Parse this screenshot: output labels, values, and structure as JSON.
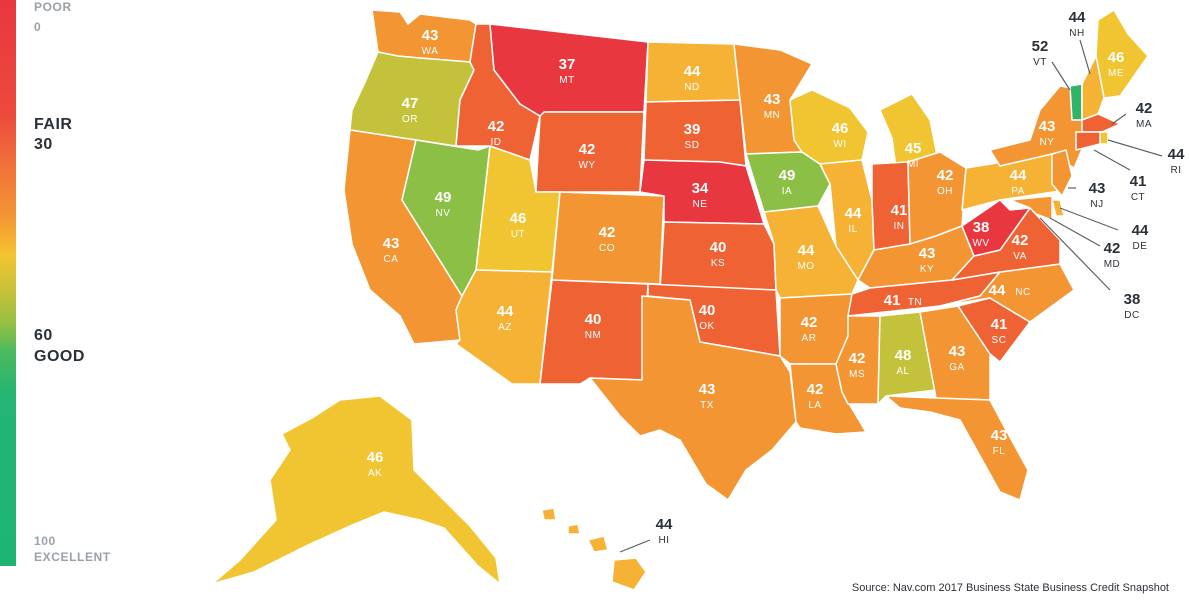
{
  "legend": {
    "poor_label": "POOR",
    "poor_value": "0",
    "fair_label": "FAIR",
    "fair_value": "30",
    "good_value": "60",
    "good_label": "GOOD",
    "excellent_value": "100",
    "excellent_label": "EXCELLENT"
  },
  "colors": {
    "red": "#e8373f",
    "orange_red": "#ef6234",
    "orange": "#f39533",
    "yellow_orange": "#f6b235",
    "yellow": "#f1c432",
    "olive": "#c3c23a",
    "light_green": "#8bbf45",
    "green": "#30b46c"
  },
  "states": {
    "WA": {
      "abbr": "WA",
      "score": "43"
    },
    "OR": {
      "abbr": "OR",
      "score": "47"
    },
    "CA": {
      "abbr": "CA",
      "score": "43"
    },
    "NV": {
      "abbr": "NV",
      "score": "49"
    },
    "ID": {
      "abbr": "ID",
      "score": "42"
    },
    "MT": {
      "abbr": "MT",
      "score": "37"
    },
    "WY": {
      "abbr": "WY",
      "score": "42"
    },
    "UT": {
      "abbr": "UT",
      "score": "46"
    },
    "AZ": {
      "abbr": "AZ",
      "score": "44"
    },
    "CO": {
      "abbr": "CO",
      "score": "42"
    },
    "NM": {
      "abbr": "NM",
      "score": "40"
    },
    "ND": {
      "abbr": "ND",
      "score": "44"
    },
    "SD": {
      "abbr": "SD",
      "score": "39"
    },
    "NE": {
      "abbr": "NE",
      "score": "34"
    },
    "KS": {
      "abbr": "KS",
      "score": "40"
    },
    "OK": {
      "abbr": "OK",
      "score": "40"
    },
    "TX": {
      "abbr": "TX",
      "score": "43"
    },
    "MN": {
      "abbr": "MN",
      "score": "43"
    },
    "IA": {
      "abbr": "IA",
      "score": "49"
    },
    "MO": {
      "abbr": "MO",
      "score": "44"
    },
    "AR": {
      "abbr": "AR",
      "score": "42"
    },
    "LA": {
      "abbr": "LA",
      "score": "42"
    },
    "WI": {
      "abbr": "WI",
      "score": "46"
    },
    "IL": {
      "abbr": "IL",
      "score": "44"
    },
    "MI": {
      "abbr": "MI",
      "score": "45"
    },
    "IN": {
      "abbr": "IN",
      "score": "41"
    },
    "OH": {
      "abbr": "OH",
      "score": "42"
    },
    "KY": {
      "abbr": "KY",
      "score": "43"
    },
    "TN": {
      "abbr": "TN",
      "score": "41"
    },
    "MS": {
      "abbr": "MS",
      "score": "42"
    },
    "AL": {
      "abbr": "AL",
      "score": "48"
    },
    "GA": {
      "abbr": "GA",
      "score": "43"
    },
    "FL": {
      "abbr": "FL",
      "score": "43"
    },
    "SC": {
      "abbr": "SC",
      "score": "41"
    },
    "NC": {
      "abbr": "NC",
      "score": "44"
    },
    "VA": {
      "abbr": "VA",
      "score": "42"
    },
    "WV": {
      "abbr": "WV",
      "score": "38"
    },
    "PA": {
      "abbr": "PA",
      "score": "44"
    },
    "NY": {
      "abbr": "NY",
      "score": "43"
    },
    "ME": {
      "abbr": "ME",
      "score": "46"
    },
    "VT": {
      "abbr": "VT",
      "score": "52"
    },
    "NH": {
      "abbr": "NH",
      "score": "44"
    },
    "MA": {
      "abbr": "MA",
      "score": "42"
    },
    "RI": {
      "abbr": "RI",
      "score": "44"
    },
    "CT": {
      "abbr": "CT",
      "score": "41"
    },
    "NJ": {
      "abbr": "NJ",
      "score": "43"
    },
    "DE": {
      "abbr": "DE",
      "score": "44"
    },
    "MD": {
      "abbr": "MD",
      "score": "42"
    },
    "DC": {
      "abbr": "DC",
      "score": "38"
    },
    "AK": {
      "abbr": "AK",
      "score": "46"
    },
    "HI": {
      "abbr": "HI",
      "score": "44"
    }
  },
  "source": "Source: Nav.com 2017 Business State Business Credit Snapshot"
}
